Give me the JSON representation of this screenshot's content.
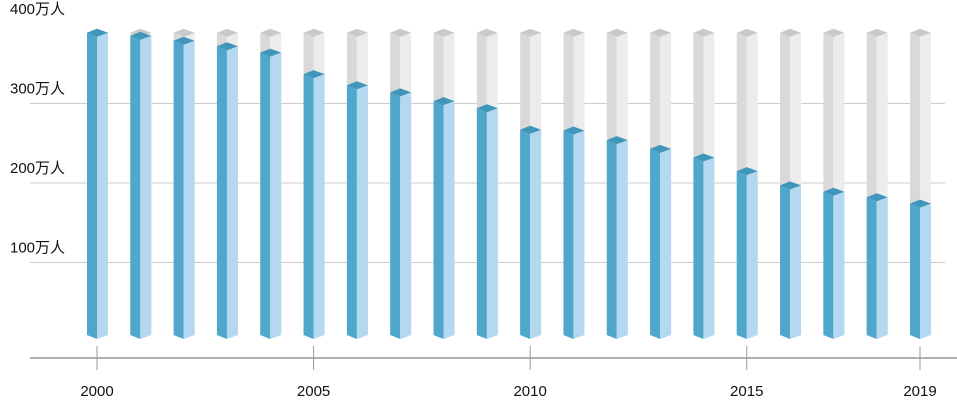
{
  "chart_data": {
    "type": "bar",
    "categories": [
      "2000",
      null,
      null,
      null,
      null,
      "2005",
      null,
      null,
      null,
      null,
      "2010",
      null,
      null,
      null,
      null,
      "2015",
      null,
      null,
      null,
      "2019"
    ],
    "values": [
      389,
      385,
      379,
      372,
      364,
      337,
      323,
      314,
      303,
      294,
      267,
      266,
      254,
      243,
      232,
      215,
      197,
      189,
      182,
      174
    ],
    "color": "#4fa7cb",
    "side_color": "#b3d8ef",
    "ylim": [
      0,
      400
    ],
    "yticks": [
      {
        "value": 100,
        "label": "100万人"
      },
      {
        "value": 200,
        "label": "200万人"
      },
      {
        "value": 300,
        "label": "300万人"
      },
      {
        "value": 400,
        "label": "400万人"
      }
    ],
    "grid": true
  }
}
